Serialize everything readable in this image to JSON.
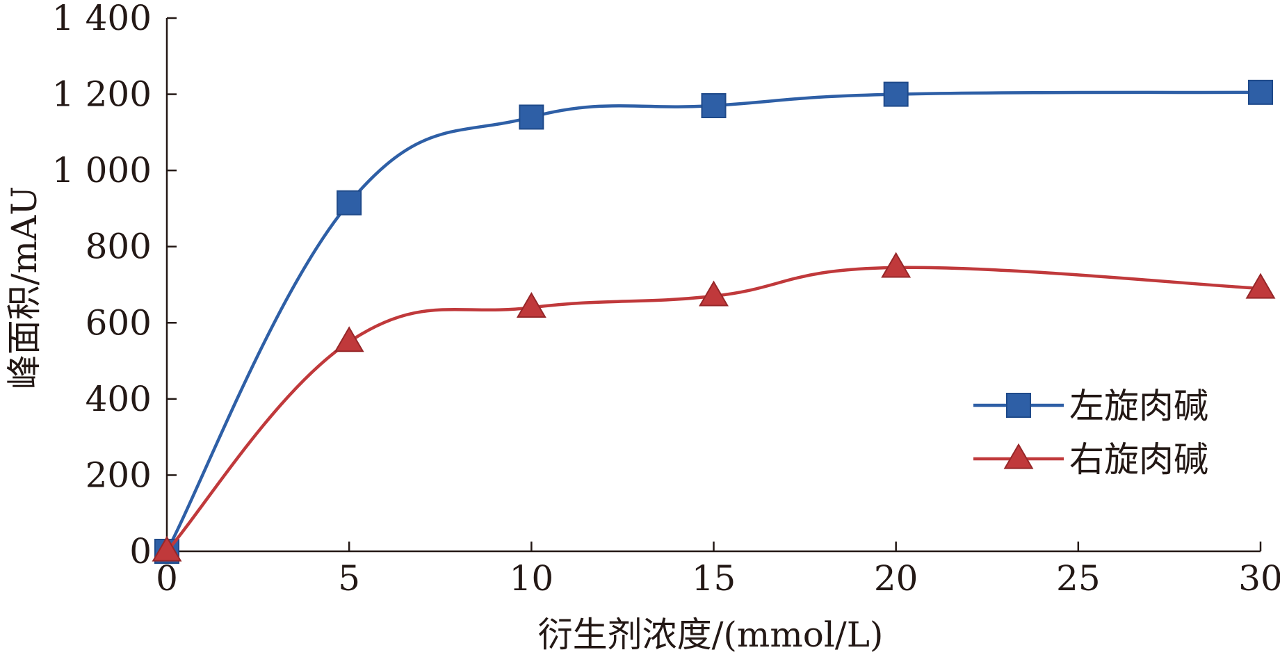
{
  "chart_data": {
    "type": "line",
    "title": "",
    "xlabel": "衍生剂浓度/(mmol/L)",
    "ylabel": "峰面积/mAU",
    "x": [
      0,
      5,
      10,
      15,
      20,
      30
    ],
    "xlim": [
      0,
      30
    ],
    "ylim": [
      0,
      1400
    ],
    "x_ticks": [
      0,
      5,
      10,
      15,
      20,
      25,
      30
    ],
    "y_ticks": [
      0,
      200,
      400,
      600,
      800,
      1000,
      1200,
      1400
    ],
    "x_tick_labels": [
      "0",
      "5",
      "10",
      "15",
      "20",
      "25",
      "30"
    ],
    "y_tick_labels": [
      "0",
      "200",
      "400",
      "600",
      "800",
      "1 000",
      "1 200",
      "1 400"
    ],
    "grid": false,
    "legend_position": "right",
    "series": [
      {
        "name": "左旋肉碱",
        "values": [
          0,
          915,
          1140,
          1170,
          1200,
          1205
        ],
        "color": "#2e5fa6",
        "marker": "square"
      },
      {
        "name": "右旋肉碱",
        "values": [
          0,
          550,
          640,
          670,
          745,
          690
        ],
        "color": "#c0393b",
        "marker": "triangle"
      }
    ]
  }
}
